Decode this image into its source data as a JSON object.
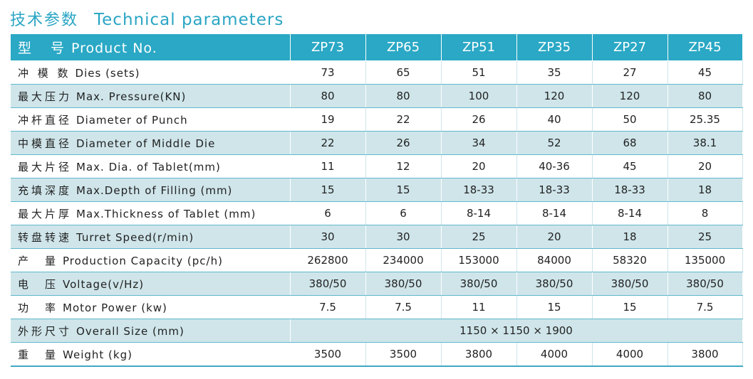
{
  "title": {
    "zh": "技术参数",
    "en": "Technical parameters"
  },
  "header": {
    "label_zh": "型　号",
    "label_en": "Product No.",
    "models": [
      "ZP73",
      "ZP65",
      "ZP51",
      "ZP35",
      "ZP27",
      "ZP45"
    ]
  },
  "rows": [
    {
      "zh": "冲 模 数",
      "en": "Dies (sets)",
      "values": [
        "73",
        "65",
        "51",
        "35",
        "27",
        "45"
      ]
    },
    {
      "zh": "最大压力",
      "en": "Max. Pressure(KN)",
      "values": [
        "80",
        "80",
        "100",
        "120",
        "120",
        "80"
      ]
    },
    {
      "zh": "冲杆直径",
      "en": "Diameter of Punch",
      "values": [
        "19",
        "22",
        "26",
        "40",
        "50",
        "25.35"
      ]
    },
    {
      "zh": "中模直径",
      "en": "Diameter of Middle Die",
      "values": [
        "22",
        "26",
        "34",
        "52",
        "68",
        "38.1"
      ]
    },
    {
      "zh": "最大片径",
      "en": "Max. Dia. of Tablet(mm)",
      "values": [
        "11",
        "12",
        "20",
        "40-36",
        "45",
        "20"
      ]
    },
    {
      "zh": "充填深度",
      "en": "Max.Depth of Filling (mm)",
      "values": [
        "15",
        "15",
        "18-33",
        "18-33",
        "18-33",
        "18"
      ]
    },
    {
      "zh": "最大片厚",
      "en": "Max.Thickness of Tablet (mm)",
      "values": [
        "6",
        "6",
        "8-14",
        "8-14",
        "8-14",
        "8"
      ]
    },
    {
      "zh": "转盘转速",
      "en": "Turret Speed(r/min)",
      "values": [
        "30",
        "30",
        "25",
        "20",
        "18",
        "25"
      ]
    },
    {
      "zh": "产　量",
      "en": "Production Capacity (pc/h)",
      "values": [
        "262800",
        "234000",
        "153000",
        "84000",
        "58320",
        "135000"
      ]
    },
    {
      "zh": "电　压",
      "en": "Voltage(v/Hz)",
      "values": [
        "380/50",
        "380/50",
        "380/50",
        "380/50",
        "380/50",
        "380/50"
      ]
    },
    {
      "zh": "功　率",
      "en": "Motor Power (kw)",
      "values": [
        "7.5",
        "7.5",
        "11",
        "15",
        "15",
        "7.5"
      ]
    },
    {
      "zh": "外形尺寸",
      "en": "Overall Size (mm)",
      "merged": "1150 × 1150 × 1900"
    },
    {
      "zh": "重　量",
      "en": "Weight (kg)",
      "values": [
        "3500",
        "3500",
        "3800",
        "4000",
        "4000",
        "3800"
      ]
    }
  ]
}
